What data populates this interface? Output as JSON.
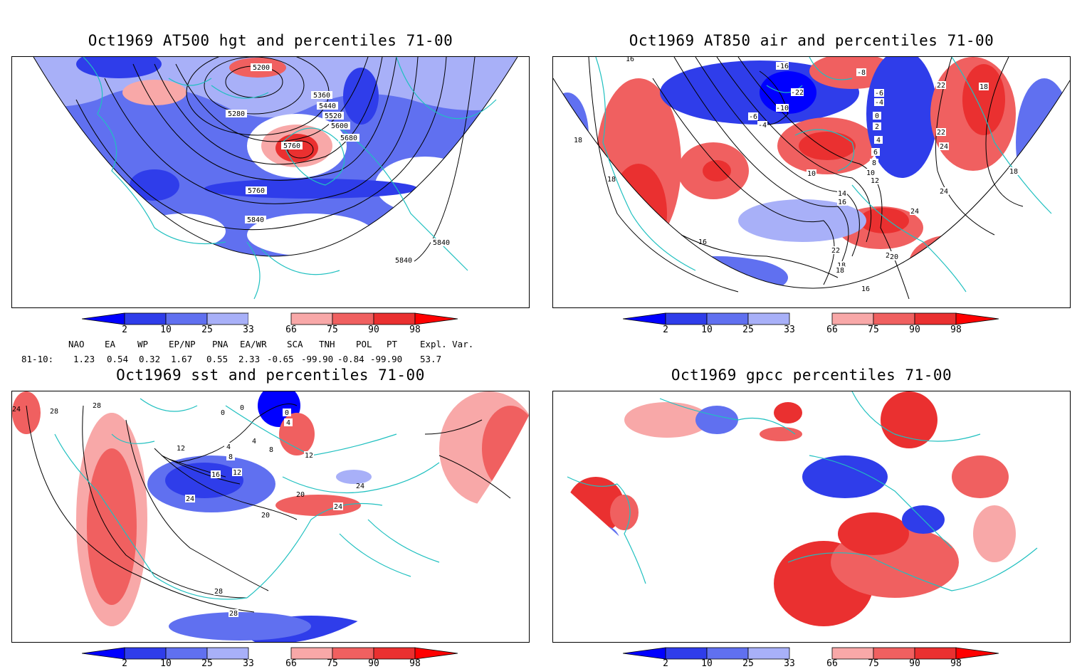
{
  "panels": [
    {
      "title": "Oct1969 AT500 hgt and percentiles 71-00",
      "contour_labels": [
        "5200",
        "5280",
        "5360",
        "5440",
        "5520",
        "5600",
        "5680",
        "5760",
        "5760",
        "5840",
        "5840",
        "5840"
      ]
    },
    {
      "title": "Oct1969 AT850 air and percentiles 71-00",
      "contour_labels": [
        "16",
        "18",
        "18",
        "-6",
        "-4",
        "-10",
        "-16",
        "-22",
        "-8",
        "-6",
        "-4",
        "0",
        "2",
        "4",
        "6",
        "8",
        "10",
        "10",
        "12",
        "14",
        "16",
        "18",
        "20",
        "22",
        "24",
        "24",
        "22",
        "22",
        "20",
        "18",
        "16",
        "16",
        "18",
        "24",
        "18"
      ]
    },
    {
      "title": "Oct1969 sst and percentiles 71-00",
      "contour_labels": [
        "24",
        "28",
        "28",
        "12",
        "16",
        "12",
        "8",
        "4",
        "8",
        "4",
        "0",
        "0",
        "0",
        "4",
        "12",
        "20",
        "24",
        "24",
        "28",
        "28",
        "20",
        "24"
      ]
    },
    {
      "title": "Oct1969 gpcc percentiles 71-00",
      "contour_labels": []
    }
  ],
  "colorbar": {
    "labels": [
      "2",
      "10",
      "25",
      "33",
      "66",
      "75",
      "90",
      "98"
    ],
    "colors": {
      "lt2": "#0000ff",
      "b2_10": "#2f3dea",
      "b10_25": "#6070f0",
      "b25_33": "#a8b0f8",
      "neutral": "#ffffff",
      "r66_75": "#f8a8a8",
      "r75_90": "#f06060",
      "r90_98": "#ea3030",
      "gt98": "#ff0000"
    }
  },
  "indices": {
    "headers": [
      "NAO",
      "EA",
      "WP",
      "EP/NP",
      "PNA",
      "EA/WR",
      "SCA",
      "TNH",
      "POL",
      "PT",
      "Expl. Var."
    ],
    "row_label": "81-10:",
    "values": [
      "1.23",
      "0.54",
      "0.32",
      "1.67",
      "0.55",
      "2.33",
      "-0.65",
      "-99.90",
      "-0.84",
      "-99.90",
      "53.7"
    ]
  },
  "colors": {
    "coast": "#20c0c0",
    "contour": "#000000"
  }
}
